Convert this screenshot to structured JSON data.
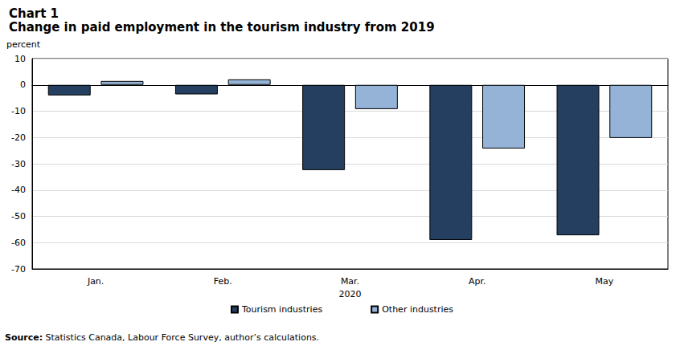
{
  "chart_data": {
    "type": "bar",
    "title": "Chart 1",
    "subtitle": "Change in paid employment in the tourism industry from 2019",
    "y_label": "percent",
    "x_label": "2020",
    "categories": [
      "Jan.",
      "Feb.",
      "Mar.",
      "Apr.",
      "May"
    ],
    "series": [
      {
        "name": "Tourism industries",
        "color": "#243f60",
        "values": [
          -4.0,
          -3.6,
          -32.4,
          -59.0,
          -57.2
        ]
      },
      {
        "name": "Other industries",
        "color": "#95b3d7",
        "values": [
          1.5,
          2.1,
          -9.2,
          -24.2,
          -20.2
        ]
      }
    ],
    "ylim": [
      -70,
      10
    ],
    "yticks": [
      -70,
      -60,
      -50,
      -40,
      -30,
      -20,
      -10,
      0,
      10
    ],
    "grid": true,
    "legend": "bottom",
    "source_label": "Source:",
    "source_text": "Statistics Canada, Labour Force Survey, author’s calculations."
  }
}
